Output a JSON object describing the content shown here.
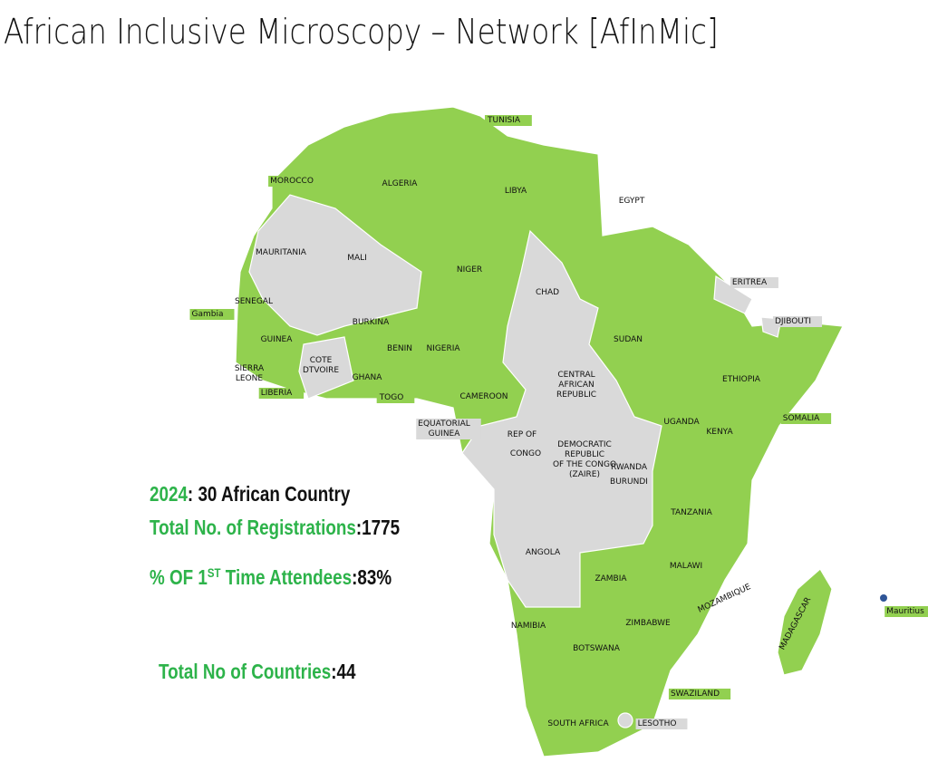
{
  "header": {
    "title": "African Inclusive Microscopy – Network [AfInMic]"
  },
  "stats": {
    "year": {
      "label": "2024",
      "text": ": 30 African Country"
    },
    "registrations": {
      "label": "Total No. of Registrations",
      "sep": ":",
      "value": 1775
    },
    "attendees": {
      "label_start": "% OF 1",
      "label_sup": "ST",
      "label_end": " Time Attendees",
      "sep": ":",
      "value": "83%"
    },
    "countries": {
      "label": "Total No of Countries",
      "sep": ":",
      "value": 44
    }
  },
  "labels": [
    [
      "TUNISIA"
    ],
    [
      "MOROCCO"
    ],
    [
      "ALGERIA"
    ],
    [
      "LIBYA"
    ],
    [
      "EGYPT"
    ],
    [
      "MAURITANIA"
    ],
    [
      "MALI"
    ],
    [
      "NIGER"
    ],
    [
      "CHAD"
    ],
    [
      "ERITREA"
    ],
    [
      "SENEGAL"
    ],
    [
      "Gambia"
    ],
    [
      "DJIBOUTI"
    ],
    [
      "BURKINA"
    ],
    [
      "SUDAN"
    ],
    [
      "GUINEA"
    ],
    [
      "COTE",
      "DTVOIRE"
    ],
    [
      "BENIN"
    ],
    [
      "NIGERIA"
    ],
    [
      "SIERRA",
      "LEONE"
    ],
    [
      "GHANA"
    ],
    [
      "CENTRAL",
      "AFRICAN",
      "REPUBLIC"
    ],
    [
      "ETHIOPIA"
    ],
    [
      "LIBERIA"
    ],
    [
      "TOGO"
    ],
    [
      "CAMEROON"
    ],
    [
      "EQUATORIAL",
      "GUINEA"
    ],
    [
      "SOMALIA"
    ],
    [
      "UGANDA"
    ],
    [
      "KENYA"
    ],
    [
      "REP OF"
    ],
    [
      "CONGO"
    ],
    [
      "DEMOCRATIC",
      "REPUBLIC",
      "OF THE CONGO",
      "(ZAIRE)"
    ],
    [
      "RWANDA"
    ],
    [
      "BURUNDI"
    ],
    [
      "TANZANIA"
    ],
    [
      "ANGOLA"
    ],
    [
      "MALAWI"
    ],
    [
      "ZAMBIA"
    ],
    [
      "MOZAMBIQUE"
    ],
    [
      "Mauritius"
    ],
    [
      "NAMIBIA"
    ],
    [
      "ZIMBABWE"
    ],
    [
      "BOTSWANA"
    ],
    [
      "MADAGASCAR"
    ],
    [
      "SWAZILAND"
    ],
    [
      "SOUTH AFRICA"
    ],
    [
      "LESOTHO"
    ]
  ]
}
